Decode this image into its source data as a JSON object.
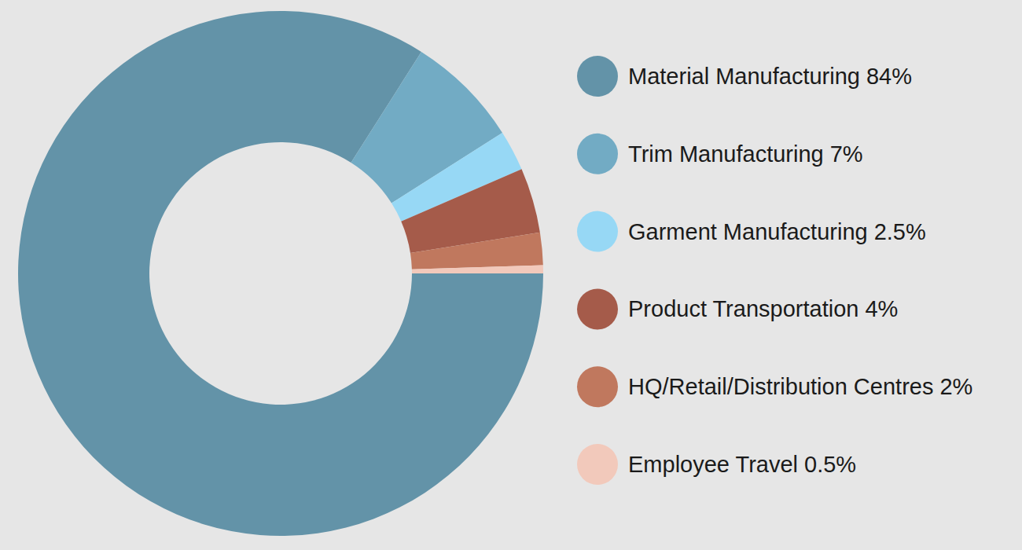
{
  "chart_data": {
    "type": "pie",
    "categories": [
      "Material Manufacturing",
      "Trim Manufacturing",
      "Garment Manufacturing",
      "Product Transportation",
      "HQ/Retail/Distribution Centres",
      "Employee Travel"
    ],
    "values": [
      84,
      7,
      2.5,
      4,
      2,
      0.5
    ],
    "value_labels": [
      "84%",
      "7%",
      "2.5%",
      "4%",
      "2%",
      "0.5%"
    ],
    "colors": [
      "#6393a8",
      "#72abc4",
      "#97d8f5",
      "#a55b4a",
      "#c0785e",
      "#f2c9bb"
    ],
    "legend": "right"
  }
}
